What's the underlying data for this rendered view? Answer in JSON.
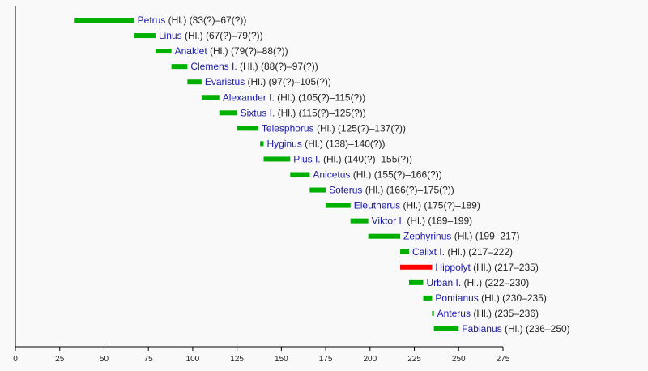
{
  "chart_data": {
    "type": "bar",
    "orientation": "horizontal-timeline",
    "xlim": [
      0,
      275
    ],
    "xticks": [
      "0",
      "25",
      "50",
      "75",
      "100",
      "125",
      "150",
      "175",
      "200",
      "225",
      "250",
      "275"
    ],
    "grid": false,
    "colors": {
      "pope": "#00b000",
      "antipope": "#ff0000",
      "name": "#1a1aa6",
      "background": "#f9f9f9"
    },
    "rows": [
      {
        "name": "Petrus",
        "suffix": "(Hl.) (33(?)–67(?))",
        "start": 33,
        "end": 67,
        "type": "pope"
      },
      {
        "name": "Linus",
        "suffix": "(Hl.) (67(?)–79(?))",
        "start": 67,
        "end": 79,
        "type": "pope"
      },
      {
        "name": "Anaklet",
        "suffix": "(Hl.) (79(?)–88(?))",
        "start": 79,
        "end": 88,
        "type": "pope"
      },
      {
        "name": "Clemens I.",
        "suffix": "(Hl.) (88(?)–97(?))",
        "start": 88,
        "end": 97,
        "type": "pope"
      },
      {
        "name": "Evaristus",
        "suffix": "(Hl.) (97(?)–105(?))",
        "start": 97,
        "end": 105,
        "type": "pope"
      },
      {
        "name": "Alexander I.",
        "suffix": "(Hl.) (105(?)–115(?))",
        "start": 105,
        "end": 115,
        "type": "pope"
      },
      {
        "name": "Sixtus I.",
        "suffix": "(Hl.) (115(?)–125(?))",
        "start": 115,
        "end": 125,
        "type": "pope"
      },
      {
        "name": "Telesphorus",
        "suffix": "(Hl.) (125(?)–137(?))",
        "start": 125,
        "end": 137,
        "type": "pope"
      },
      {
        "name": "Hyginus",
        "suffix": "(Hl.) (138)–140(?))",
        "start": 138,
        "end": 140,
        "type": "pope"
      },
      {
        "name": "Pius I.",
        "suffix": "(Hl.) (140(?)–155(?))",
        "start": 140,
        "end": 155,
        "type": "pope"
      },
      {
        "name": "Anicetus",
        "suffix": "(Hl.) (155(?)–166(?))",
        "start": 155,
        "end": 166,
        "type": "pope"
      },
      {
        "name": "Soterus",
        "suffix": "(Hl.) (166(?)–175(?))",
        "start": 166,
        "end": 175,
        "type": "pope"
      },
      {
        "name": "Eleutherus",
        "suffix": "(Hl.) (175(?)–189)",
        "start": 175,
        "end": 189,
        "type": "pope"
      },
      {
        "name": "Viktor I.",
        "suffix": "(Hl.) (189–199)",
        "start": 189,
        "end": 199,
        "type": "pope"
      },
      {
        "name": "Zephyrinus",
        "suffix": "(Hl.) (199–217)",
        "start": 199,
        "end": 217,
        "type": "pope"
      },
      {
        "name": "Calixt I.",
        "suffix": "(Hl.) (217–222)",
        "start": 217,
        "end": 222,
        "type": "pope"
      },
      {
        "name": "Hippolyt",
        "suffix": "(Hl.) (217–235)",
        "start": 217,
        "end": 235,
        "type": "antipope"
      },
      {
        "name": "Urban I.",
        "suffix": "(Hl.) (222–230)",
        "start": 222,
        "end": 230,
        "type": "pope"
      },
      {
        "name": "Pontianus",
        "suffix": "(Hl.) (230–235)",
        "start": 230,
        "end": 235,
        "type": "pope"
      },
      {
        "name": "Anterus",
        "suffix": "(Hl.) (235–236)",
        "start": 235,
        "end": 236,
        "type": "pope"
      },
      {
        "name": "Fabianus",
        "suffix": "(Hl.) (236–250)",
        "start": 236,
        "end": 250,
        "type": "pope"
      }
    ]
  }
}
